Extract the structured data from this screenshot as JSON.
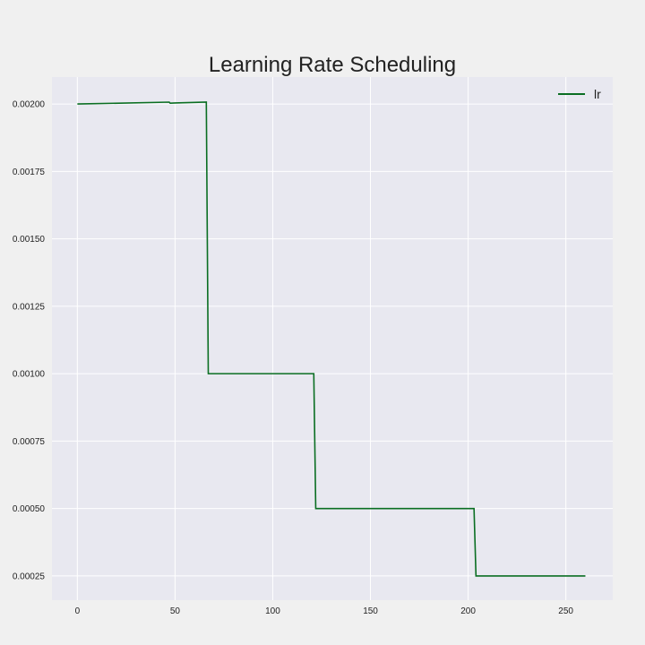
{
  "chart_data": {
    "type": "line",
    "title": "Learning Rate Scheduling",
    "xlabel": "",
    "ylabel": "",
    "xlim": [
      -13,
      274
    ],
    "ylim": [
      0.00016,
      0.0021
    ],
    "x_ticks": [
      0,
      50,
      100,
      150,
      200,
      250
    ],
    "x_tick_labels": [
      "0",
      "50",
      "100",
      "150",
      "200",
      "250"
    ],
    "y_ticks": [
      0.00025,
      0.0005,
      0.00075,
      0.001,
      0.00125,
      0.0015,
      0.00175,
      0.002
    ],
    "y_tick_labels": [
      "0.00025",
      "0.00050",
      "0.00075",
      "0.00100",
      "0.00125",
      "0.00150",
      "0.00175",
      "0.00200"
    ],
    "grid": true,
    "legend_position": "top-right",
    "series": [
      {
        "name": "lr",
        "color": "#0a6e22",
        "x": [
          0,
          47,
          47.5,
          50,
          66,
          67,
          121,
          122,
          203,
          204,
          260
        ],
        "y": [
          0.002,
          0.002007,
          0.002003,
          0.002004,
          0.002007,
          0.001,
          0.001,
          0.0005,
          0.0005,
          0.00025,
          0.00025
        ]
      }
    ]
  },
  "colors": {
    "figure_background": "#f0f0f0",
    "plot_background": "#e8e8f0",
    "grid": "#ffffff",
    "text": "#222222"
  }
}
